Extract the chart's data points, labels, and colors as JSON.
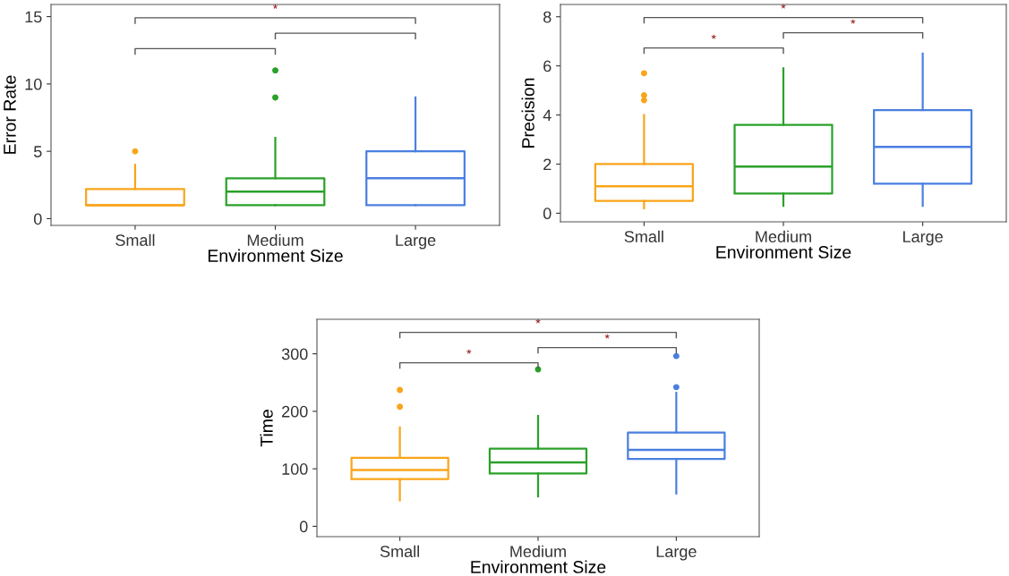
{
  "chart_data": [
    {
      "type": "box",
      "xlabel": "Environment Size",
      "ylabel": "Error Rate",
      "categories": [
        "Small",
        "Medium",
        "Large"
      ],
      "colors": [
        "#f9a51b",
        "#2aa12a",
        "#4a7fe0"
      ],
      "boxes": [
        {
          "low": 1,
          "q1": 1,
          "median": 1,
          "q3": 2.2,
          "high": 4,
          "outliers": [
            5
          ]
        },
        {
          "low": 1,
          "q1": 1,
          "median": 2,
          "q3": 3,
          "high": 6,
          "outliers": [
            9,
            11
          ]
        },
        {
          "low": 1,
          "q1": 1,
          "median": 3,
          "q3": 5,
          "high": 9
        }
      ],
      "ylim": [
        -0.5,
        15.9
      ],
      "yticks": [
        0,
        5,
        10,
        15
      ],
      "grid": false,
      "annotations": [
        "*"
      ]
    },
    {
      "type": "box",
      "xlabel": "Environment Size",
      "ylabel": "Precision",
      "categories": [
        "Small",
        "Medium",
        "Large"
      ],
      "colors": [
        "#f9a51b",
        "#2aa12a",
        "#4a7fe0"
      ],
      "boxes": [
        {
          "low": 0.2,
          "q1": 0.5,
          "median": 1.1,
          "q3": 2.0,
          "high": 4.0,
          "outliers": [
            4.6,
            4.8,
            5.7
          ]
        },
        {
          "low": 0.3,
          "q1": 0.8,
          "median": 1.9,
          "q3": 3.6,
          "high": 5.9
        },
        {
          "low": 0.3,
          "q1": 1.2,
          "median": 2.7,
          "q3": 4.2,
          "high": 6.5
        }
      ],
      "ylim": [
        -0.35,
        8.5
      ],
      "yticks": [
        0,
        2,
        4,
        6,
        8
      ],
      "grid": false,
      "annotations": [
        "*",
        "*",
        "*"
      ]
    },
    {
      "type": "box",
      "xlabel": "Environment Size",
      "ylabel": "Time",
      "categories": [
        "Small",
        "Medium",
        "Large"
      ],
      "colors": [
        "#f9a51b",
        "#2aa12a",
        "#4a7fe0"
      ],
      "boxes": [
        {
          "low": 45,
          "q1": 82,
          "median": 98,
          "q3": 119,
          "high": 172,
          "outliers": [
            208,
            237
          ]
        },
        {
          "low": 52,
          "q1": 92,
          "median": 111,
          "q3": 135,
          "high": 192,
          "outliers": [
            273
          ]
        },
        {
          "low": 57,
          "q1": 117,
          "median": 133,
          "q3": 163,
          "high": 232,
          "outliers": [
            242,
            296
          ]
        }
      ],
      "ylim": [
        -18,
        360
      ],
      "yticks": [
        0,
        100,
        200,
        300
      ],
      "grid": false,
      "annotations": [
        "*",
        "*",
        "*"
      ]
    }
  ]
}
